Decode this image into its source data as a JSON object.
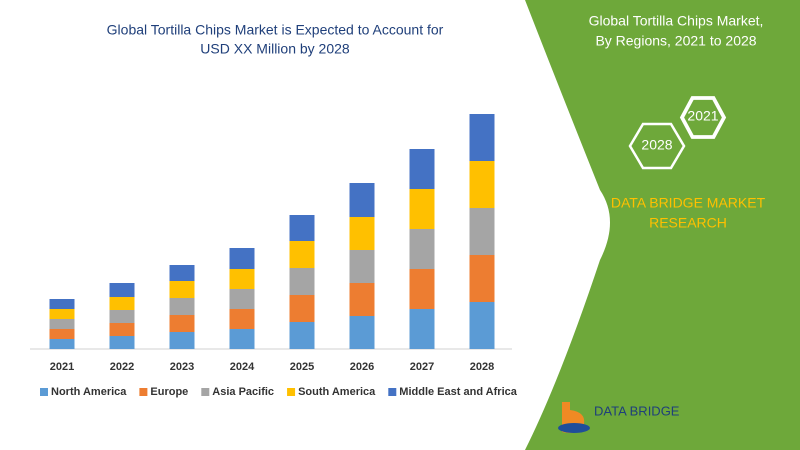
{
  "chart_data": {
    "type": "stacked-bar",
    "title": [
      "Global Tortilla Chips Market is Expected to Account for",
      "USD XX Million by 2028"
    ],
    "categories": [
      "2021",
      "2022",
      "2023",
      "2024",
      "2025",
      "2026",
      "2027",
      "2028"
    ],
    "series": [
      {
        "name": "North America",
        "color": "#5b9bd5",
        "values": [
          10,
          13,
          17,
          20,
          27,
          33,
          40,
          47
        ]
      },
      {
        "name": "Europe",
        "color": "#ed7d31",
        "values": [
          10,
          13,
          17,
          20,
          27,
          33,
          40,
          47
        ]
      },
      {
        "name": "Asia Pacific",
        "color": "#a5a5a5",
        "values": [
          10,
          13,
          17,
          20,
          27,
          33,
          40,
          47
        ]
      },
      {
        "name": "South America",
        "color": "#ffc000",
        "values": [
          10,
          13,
          17,
          20,
          27,
          33,
          40,
          47
        ]
      },
      {
        "name": "Middle East and Africa",
        "color": "#4472c4",
        "values": [
          10,
          14,
          16,
          21,
          26,
          34,
          40,
          47
        ]
      }
    ],
    "ylim": [
      0,
      240
    ]
  },
  "panel": {
    "heading": [
      "Global Tortilla Chips Market,",
      "By Regions, 2021 to 2028"
    ],
    "badges": [
      "2021",
      "2028"
    ],
    "brand": [
      "DATA BRIDGE MARKET",
      "RESEARCH"
    ],
    "logo": "DATA BRIDGE"
  }
}
